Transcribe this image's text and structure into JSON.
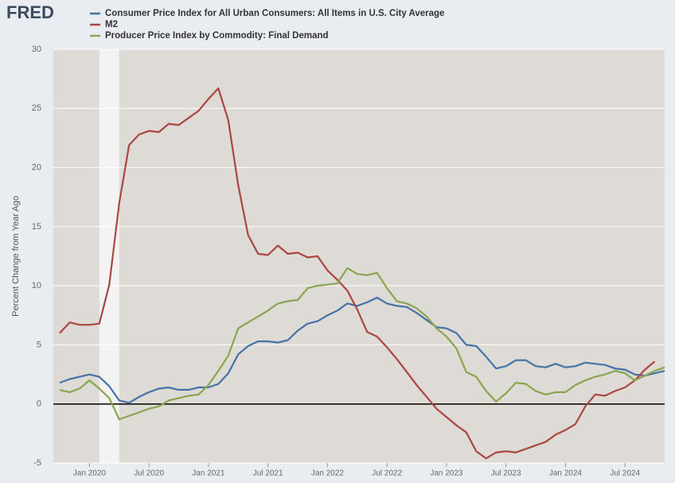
{
  "logo": "FRED",
  "chart_data": {
    "type": "line",
    "y_label": "Percent Change from Year Ago",
    "x": [
      "2019-10",
      "2019-11",
      "2019-12",
      "2020-01",
      "2020-02",
      "2020-03",
      "2020-04",
      "2020-05",
      "2020-06",
      "2020-07",
      "2020-08",
      "2020-09",
      "2020-10",
      "2020-11",
      "2020-12",
      "2021-01",
      "2021-02",
      "2021-03",
      "2021-04",
      "2021-05",
      "2021-06",
      "2021-07",
      "2021-08",
      "2021-09",
      "2021-10",
      "2021-11",
      "2021-12",
      "2022-01",
      "2022-02",
      "2022-03",
      "2022-04",
      "2022-05",
      "2022-06",
      "2022-07",
      "2022-08",
      "2022-09",
      "2022-10",
      "2022-11",
      "2022-12",
      "2023-01",
      "2023-02",
      "2023-03",
      "2023-04",
      "2023-05",
      "2023-06",
      "2023-07",
      "2023-08",
      "2023-09",
      "2023-10",
      "2023-11",
      "2023-12",
      "2024-01",
      "2024-02",
      "2024-03",
      "2024-04",
      "2024-05",
      "2024-06",
      "2024-07",
      "2024-08",
      "2024-09",
      "2024-10",
      "2024-11"
    ],
    "series": [
      {
        "name": "Consumer Price Index for All Urban Consumers: All Items in U.S. City Average",
        "color": "#4572a7",
        "values": [
          1.8,
          2.1,
          2.3,
          2.5,
          2.3,
          1.5,
          0.3,
          0.1,
          0.6,
          1.0,
          1.3,
          1.4,
          1.2,
          1.2,
          1.4,
          1.4,
          1.7,
          2.6,
          4.2,
          4.9,
          5.3,
          5.3,
          5.2,
          5.4,
          6.2,
          6.8,
          7.0,
          7.5,
          7.9,
          8.5,
          8.3,
          8.6,
          9.0,
          8.5,
          8.3,
          8.2,
          7.7,
          7.1,
          6.5,
          6.4,
          6.0,
          5.0,
          4.9,
          4.0,
          3.0,
          3.2,
          3.7,
          3.7,
          3.2,
          3.1,
          3.4,
          3.1,
          3.2,
          3.5,
          3.4,
          3.3,
          3.0,
          2.9,
          2.5,
          2.4,
          2.6,
          2.8
        ]
      },
      {
        "name": "M2",
        "color": "#aa4643",
        "values": [
          6.0,
          6.9,
          6.7,
          6.7,
          6.8,
          10.1,
          17.0,
          21.9,
          22.8,
          23.1,
          23.0,
          23.7,
          23.6,
          24.2,
          24.8,
          25.8,
          26.7,
          24.0,
          18.5,
          14.3,
          12.7,
          12.6,
          13.4,
          12.7,
          12.8,
          12.4,
          12.5,
          11.3,
          10.5,
          9.6,
          8.0,
          6.1,
          5.7,
          4.8,
          3.8,
          2.7,
          1.6,
          0.6,
          -0.4,
          -1.1,
          -1.8,
          -2.4,
          -4.0,
          -4.6,
          -4.1,
          -4.0,
          -4.1,
          -3.8,
          -3.5,
          -3.2,
          -2.6,
          -2.2,
          -1.7,
          -0.2,
          0.8,
          0.7,
          1.1,
          1.4,
          2.0,
          2.9,
          3.6,
          null
        ]
      },
      {
        "name": "Producer Price Index by Commodity: Final Demand",
        "color": "#89a54e",
        "values": [
          1.2,
          1.0,
          1.3,
          2.0,
          1.3,
          0.5,
          -1.3,
          -1.0,
          -0.7,
          -0.4,
          -0.2,
          0.3,
          0.5,
          0.7,
          0.8,
          1.6,
          2.8,
          4.1,
          6.4,
          6.9,
          7.4,
          7.9,
          8.5,
          8.7,
          8.8,
          9.8,
          10.0,
          10.1,
          10.2,
          11.5,
          11.0,
          10.9,
          11.1,
          9.8,
          8.7,
          8.5,
          8.1,
          7.4,
          6.4,
          5.7,
          4.7,
          2.7,
          2.3,
          1.1,
          0.2,
          0.9,
          1.8,
          1.7,
          1.1,
          0.8,
          1.0,
          1.0,
          1.6,
          2.0,
          2.3,
          2.5,
          2.8,
          2.6,
          2.0,
          2.4,
          2.8,
          3.1
        ]
      }
    ],
    "xlim": [
      "2019-10",
      "2024-11"
    ],
    "xticks": [
      {
        "value": "2020-01",
        "label": "Jan 2020"
      },
      {
        "value": "2020-07",
        "label": "Jul 2020"
      },
      {
        "value": "2021-01",
        "label": "Jan 2021"
      },
      {
        "value": "2021-07",
        "label": "Jul 2021"
      },
      {
        "value": "2022-01",
        "label": "Jan 2022"
      },
      {
        "value": "2022-07",
        "label": "Jul 2022"
      },
      {
        "value": "2023-01",
        "label": "Jan 2023"
      },
      {
        "value": "2023-07",
        "label": "Jul 2023"
      },
      {
        "value": "2024-01",
        "label": "Jan 2024"
      },
      {
        "value": "2024-07",
        "label": "Jul 2024"
      }
    ],
    "ylim": [
      -5,
      30
    ],
    "yticks": [
      -5,
      0,
      5,
      10,
      15,
      20,
      25,
      30
    ],
    "grid": true,
    "recession": [
      "2020-02",
      "2020-04"
    ]
  }
}
